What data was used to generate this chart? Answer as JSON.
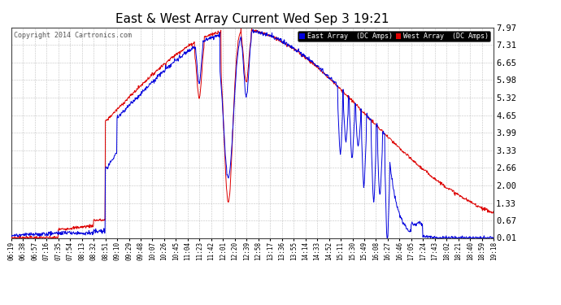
{
  "title": "East & West Array Current Wed Sep 3 19:21",
  "copyright": "Copyright 2014 Cartronics.com",
  "background_color": "#ffffff",
  "plot_bg_color": "#ffffff",
  "grid_color": "#999999",
  "east_color": "#0000dd",
  "west_color": "#dd0000",
  "yticks": [
    0.01,
    0.67,
    1.33,
    2.0,
    2.66,
    3.33,
    3.99,
    4.65,
    5.32,
    5.98,
    6.65,
    7.31,
    7.97
  ],
  "ymin": 0.01,
  "ymax": 7.97,
  "xlabel_fontsize": 5.5,
  "ylabel_fontsize": 7.5,
  "title_fontsize": 11,
  "legend_east": "East Array  (DC Amps)",
  "legend_west": "West Array  (DC Amps)",
  "xtick_labels": [
    "06:19",
    "06:38",
    "06:57",
    "07:16",
    "07:35",
    "07:54",
    "08:13",
    "08:32",
    "08:51",
    "09:10",
    "09:29",
    "09:48",
    "10:07",
    "10:26",
    "10:45",
    "11:04",
    "11:23",
    "11:42",
    "12:01",
    "12:20",
    "12:39",
    "12:58",
    "13:17",
    "13:36",
    "13:55",
    "14:14",
    "14:33",
    "14:52",
    "15:11",
    "15:30",
    "15:49",
    "16:08",
    "16:27",
    "16:46",
    "17:05",
    "17:24",
    "17:43",
    "18:02",
    "18:21",
    "18:40",
    "18:59",
    "19:18"
  ],
  "figwidth": 6.9,
  "figheight": 3.75,
  "dpi": 100
}
